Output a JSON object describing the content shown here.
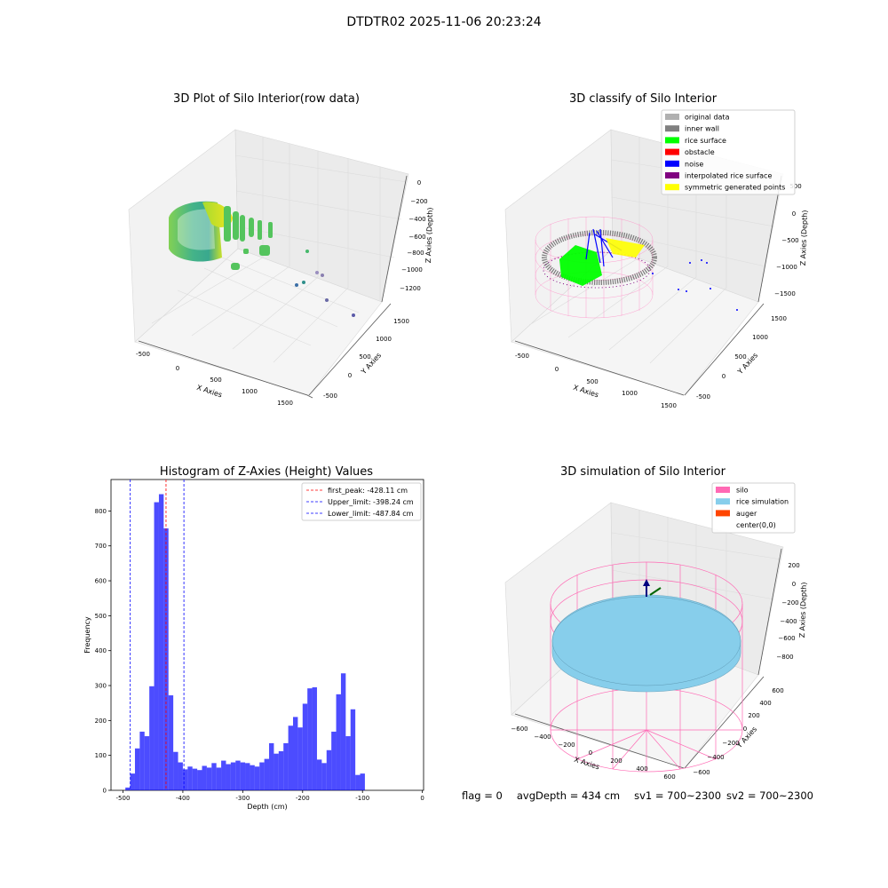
{
  "suptitle": "DTDTR02 2025-11-06 20:23:24",
  "footer": {
    "flag": "flag = 0",
    "avg_depth": "avgDepth = 434 cm",
    "sv1": "sv1 = 700~2300",
    "sv2": "sv2 = 700~2300"
  },
  "panels": {
    "raw": {
      "title": "3D Plot of Silo Interior(row data)",
      "xlabel": "X Axies",
      "ylabel": "Y Axies",
      "zlabel": "Z Axies (Depth)",
      "xticks": [
        "-500",
        "0",
        "500",
        "1000",
        "1500"
      ],
      "yticks": [
        "-500",
        "0",
        "500",
        "1000",
        "1500"
      ],
      "zticks": [
        "0",
        "−200",
        "−400",
        "−600",
        "−800",
        "−1000",
        "−1200"
      ]
    },
    "classify": {
      "title": "3D classify of Silo Interior",
      "xlabel": "X Axies",
      "ylabel": "Y Axies",
      "zlabel": "Z Axies (Depth)",
      "xticks": [
        "-500",
        "0",
        "500",
        "1000",
        "1500"
      ],
      "yticks": [
        "-500",
        "0",
        "500",
        "1000",
        "1500"
      ],
      "zticks": [
        "500",
        "0",
        "−500",
        "−1000",
        "−1500"
      ],
      "legend": [
        {
          "label": "original data",
          "color": "#b0b0b0"
        },
        {
          "label": "inner wall",
          "color": "#808080"
        },
        {
          "label": "rice surface",
          "color": "#00ff00"
        },
        {
          "label": "obstacle",
          "color": "#ff0000"
        },
        {
          "label": "noise",
          "color": "#0000ff"
        },
        {
          "label": "interpolated rice surface",
          "color": "#800080"
        },
        {
          "label": "symmetric generated points",
          "color": "#ffff00"
        }
      ]
    },
    "simulation": {
      "title": "3D simulation of Silo Interior",
      "xlabel": "X Axies",
      "ylabel": "Y Axies",
      "zlabel": "Z Axies (Depth)",
      "xticks": [
        "−600",
        "−400",
        "−200",
        "0",
        "200",
        "400",
        "600"
      ],
      "yticks": [
        "−600",
        "−400",
        "−200",
        "0",
        "200",
        "400",
        "600"
      ],
      "zticks": [
        "200",
        "0",
        "−200",
        "−400",
        "−600",
        "−800"
      ],
      "legend": [
        {
          "label": "silo",
          "color": "#ff69b4"
        },
        {
          "label": "rice simulation",
          "color": "#87ceeb"
        },
        {
          "label": "auger",
          "color": "#ff4500"
        },
        {
          "label": "center(0,0)",
          "color": ""
        }
      ]
    }
  },
  "chart_data": {
    "type": "bar",
    "title": "Histogram of Z-Axies (Height) Values",
    "xlabel": "Depth (cm)",
    "ylabel": "Frequency",
    "xlim": [
      -520,
      2
    ],
    "ylim": [
      0,
      890
    ],
    "xticks": [
      -500,
      -400,
      -300,
      -200,
      -100,
      0
    ],
    "yticks": [
      0,
      100,
      200,
      300,
      400,
      500,
      600,
      700,
      800
    ],
    "bin_start": -496,
    "bin_width": 8,
    "bar_color": "#0000ff",
    "values": [
      8,
      48,
      120,
      168,
      155,
      298,
      825,
      848,
      750,
      272,
      110,
      80,
      60,
      68,
      62,
      58,
      70,
      65,
      78,
      65,
      85,
      75,
      80,
      85,
      80,
      78,
      72,
      68,
      80,
      90,
      135,
      105,
      112,
      135,
      185,
      210,
      180,
      248,
      292,
      295,
      88,
      78,
      115,
      168,
      275,
      335,
      155,
      232,
      44,
      48
    ],
    "vlines": [
      {
        "label": "first_peak: -428.11 cm",
        "x": -428.11,
        "color": "#ff0000"
      },
      {
        "label": "Upper_limit: -398.24 cm",
        "x": -398.24,
        "color": "#0000ff"
      },
      {
        "label": "Lower_limit: -487.84 cm",
        "x": -487.84,
        "color": "#0000ff"
      }
    ]
  }
}
